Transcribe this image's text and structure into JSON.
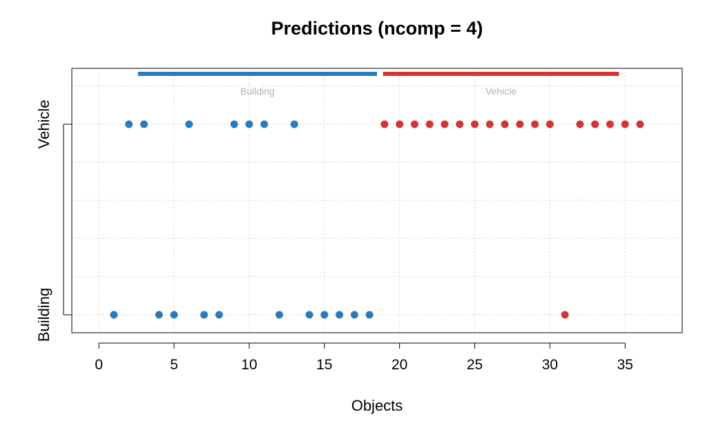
{
  "chart_data": {
    "type": "scatter",
    "title": "Predictions (ncomp = 4)",
    "xlabel": "Objects",
    "ylabel": "",
    "xlim": [
      -1.8,
      38.8
    ],
    "x_ticks": [
      0,
      5,
      10,
      15,
      20,
      25,
      30,
      35
    ],
    "y_categories": [
      "Building",
      "Vehicle"
    ],
    "grid": true,
    "groups": [
      {
        "name": "Building",
        "color": "#2b7bba",
        "x_range": [
          2.6,
          18.5
        ]
      },
      {
        "name": "Vehicle",
        "color": "#d13535",
        "x_range": [
          18.9,
          34.6
        ]
      }
    ],
    "series": [
      {
        "color": "#2b7bba",
        "points": [
          {
            "x": 1,
            "y": "Building"
          },
          {
            "x": 2,
            "y": "Vehicle"
          },
          {
            "x": 3,
            "y": "Vehicle"
          },
          {
            "x": 4,
            "y": "Building"
          },
          {
            "x": 5,
            "y": "Building"
          },
          {
            "x": 6,
            "y": "Vehicle"
          },
          {
            "x": 7,
            "y": "Building"
          },
          {
            "x": 8,
            "y": "Building"
          },
          {
            "x": 9,
            "y": "Vehicle"
          },
          {
            "x": 10,
            "y": "Vehicle"
          },
          {
            "x": 11,
            "y": "Vehicle"
          },
          {
            "x": 12,
            "y": "Building"
          },
          {
            "x": 13,
            "y": "Vehicle"
          },
          {
            "x": 14,
            "y": "Building"
          },
          {
            "x": 15,
            "y": "Building"
          },
          {
            "x": 16,
            "y": "Building"
          },
          {
            "x": 17,
            "y": "Building"
          },
          {
            "x": 18,
            "y": "Building"
          }
        ]
      },
      {
        "color": "#d13535",
        "points": [
          {
            "x": 19,
            "y": "Vehicle"
          },
          {
            "x": 20,
            "y": "Vehicle"
          },
          {
            "x": 21,
            "y": "Vehicle"
          },
          {
            "x": 22,
            "y": "Vehicle"
          },
          {
            "x": 23,
            "y": "Vehicle"
          },
          {
            "x": 24,
            "y": "Vehicle"
          },
          {
            "x": 25,
            "y": "Vehicle"
          },
          {
            "x": 26,
            "y": "Vehicle"
          },
          {
            "x": 27,
            "y": "Vehicle"
          },
          {
            "x": 28,
            "y": "Vehicle"
          },
          {
            "x": 29,
            "y": "Vehicle"
          },
          {
            "x": 30,
            "y": "Vehicle"
          },
          {
            "x": 31,
            "y": "Building"
          },
          {
            "x": 32,
            "y": "Vehicle"
          },
          {
            "x": 33,
            "y": "Vehicle"
          },
          {
            "x": 34,
            "y": "Vehicle"
          },
          {
            "x": 35,
            "y": "Vehicle"
          },
          {
            "x": 36,
            "y": "Vehicle"
          }
        ]
      }
    ]
  }
}
